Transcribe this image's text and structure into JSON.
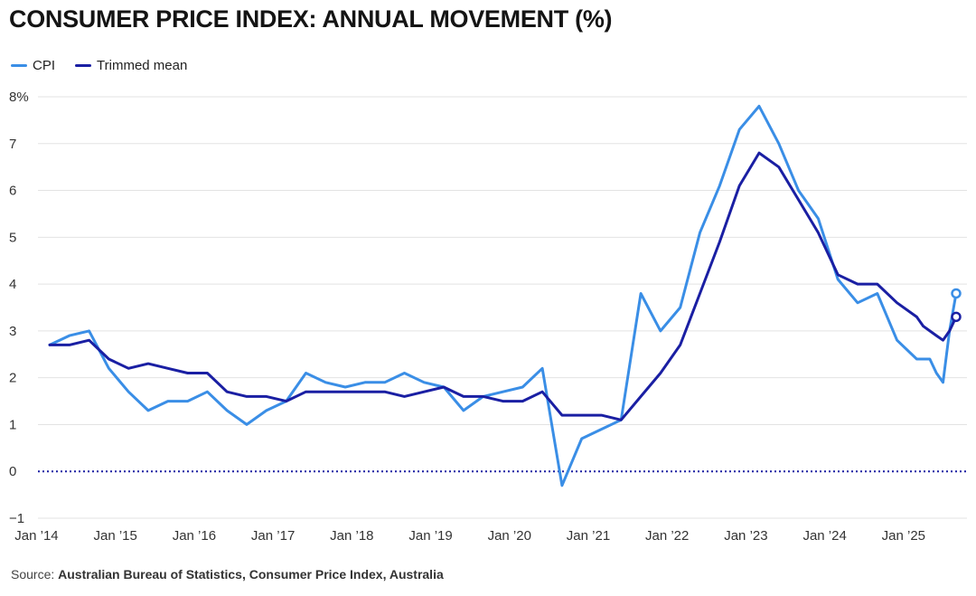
{
  "title": "CONSUMER PRICE INDEX: ANNUAL MOVEMENT (%)",
  "source_prefix": "Source: ",
  "source": "Australian Bureau of Statistics, Consumer Price Index, Australia",
  "colors": {
    "cpi": "#3a8ee6",
    "trimmed": "#1a1fa3",
    "zero_line": "#1a1fa3",
    "grid": "#e3e3e3"
  },
  "chart_data": {
    "type": "line",
    "title": "CONSUMER PRICE INDEX: ANNUAL MOVEMENT (%)",
    "xlabel": "",
    "ylabel": "",
    "ylim": [
      -1,
      8
    ],
    "y_ticks": [
      "−1",
      "0",
      "1",
      "2",
      "3",
      "4",
      "5",
      "6",
      "7",
      "8%"
    ],
    "x_ticks": [
      "Jan ’14",
      "Jan ’15",
      "Jan ’16",
      "Jan ’17",
      "Jan ’18",
      "Jan ’19",
      "Jan ’20",
      "Jan ’21",
      "Jan ’22",
      "Jan ’23",
      "Jan ’24",
      "Jan ’25"
    ],
    "legend_position": "top-left",
    "grid": true,
    "series": [
      {
        "name": "CPI",
        "x": [
          "2014-03",
          "2014-06",
          "2014-09",
          "2014-12",
          "2015-03",
          "2015-06",
          "2015-09",
          "2015-12",
          "2016-03",
          "2016-06",
          "2016-09",
          "2016-12",
          "2017-03",
          "2017-06",
          "2017-09",
          "2017-12",
          "2018-03",
          "2018-06",
          "2018-09",
          "2018-12",
          "2019-03",
          "2019-06",
          "2019-09",
          "2019-12",
          "2020-03",
          "2020-06",
          "2020-09",
          "2020-12",
          "2021-03",
          "2021-06",
          "2021-09",
          "2021-12",
          "2022-03",
          "2022-06",
          "2022-09",
          "2022-12",
          "2023-03",
          "2023-06",
          "2023-09",
          "2023-12",
          "2024-03",
          "2024-06",
          "2024-09",
          "2024-12",
          "2025-03",
          "2025-04",
          "2025-05",
          "2025-06",
          "2025-07",
          "2025-08",
          "2025-09"
        ],
        "values": [
          2.7,
          2.9,
          3.0,
          2.2,
          1.7,
          1.3,
          1.5,
          1.5,
          1.7,
          1.3,
          1.0,
          1.3,
          1.5,
          2.1,
          1.9,
          1.8,
          1.9,
          1.9,
          2.1,
          1.9,
          1.8,
          1.3,
          1.6,
          1.7,
          1.8,
          2.2,
          -0.3,
          0.7,
          0.9,
          1.1,
          3.8,
          3.0,
          3.5,
          5.1,
          6.1,
          7.3,
          7.8,
          7.0,
          6.0,
          5.4,
          4.1,
          3.6,
          3.8,
          2.8,
          2.4,
          2.4,
          2.4,
          2.1,
          1.9,
          3.0,
          3.8
        ]
      },
      {
        "name": "Trimmed mean",
        "x": [
          "2014-03",
          "2014-06",
          "2014-09",
          "2014-12",
          "2015-03",
          "2015-06",
          "2015-09",
          "2015-12",
          "2016-03",
          "2016-06",
          "2016-09",
          "2016-12",
          "2017-03",
          "2017-06",
          "2017-09",
          "2017-12",
          "2018-03",
          "2018-06",
          "2018-09",
          "2018-12",
          "2019-03",
          "2019-06",
          "2019-09",
          "2019-12",
          "2020-03",
          "2020-06",
          "2020-09",
          "2020-12",
          "2021-03",
          "2021-06",
          "2021-09",
          "2021-12",
          "2022-03",
          "2022-06",
          "2022-09",
          "2022-12",
          "2023-03",
          "2023-06",
          "2023-09",
          "2023-12",
          "2024-03",
          "2024-06",
          "2024-09",
          "2024-12",
          "2025-03",
          "2025-04",
          "2025-05",
          "2025-06",
          "2025-07",
          "2025-08",
          "2025-09"
        ],
        "values": [
          2.7,
          2.7,
          2.8,
          2.4,
          2.2,
          2.3,
          2.2,
          2.1,
          2.1,
          1.7,
          1.6,
          1.6,
          1.5,
          1.7,
          1.7,
          1.7,
          1.7,
          1.7,
          1.6,
          1.7,
          1.8,
          1.6,
          1.6,
          1.5,
          1.5,
          1.7,
          1.2,
          1.2,
          1.2,
          1.1,
          1.6,
          2.1,
          2.7,
          3.8,
          4.9,
          6.1,
          6.8,
          6.5,
          5.8,
          5.1,
          4.2,
          4.0,
          4.0,
          3.6,
          3.3,
          3.1,
          3.0,
          2.9,
          2.8,
          3.0,
          3.3
        ]
      }
    ]
  }
}
